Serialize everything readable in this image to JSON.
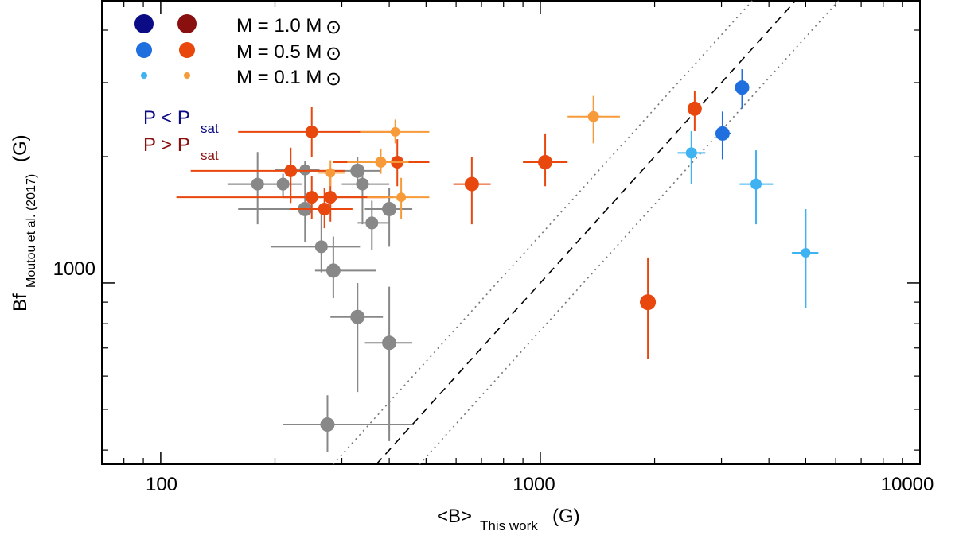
{
  "chart_data": {
    "type": "scatter",
    "xscale": "log",
    "yscale": "log",
    "xlim": [
      70,
      10000
    ],
    "ylim": [
      370,
      4700
    ],
    "xlabel": {
      "main": "<B>",
      "sub": "This work",
      "unit": "(G)"
    },
    "ylabel": {
      "main": "Bf",
      "sub": "Moutou et al. (2017)",
      "unit": "(G)"
    },
    "x_ticks": [
      {
        "value": 100,
        "label": "100"
      },
      {
        "value": 1000,
        "label": "1000"
      },
      {
        "value": 10000,
        "label": "10000"
      }
    ],
    "y_ticks": [
      {
        "value": 1000,
        "label": "1000"
      }
    ],
    "reference_lines": [
      {
        "name": "one-to-one",
        "style": "dashed",
        "factor": 1.0
      },
      {
        "name": "upper-factor",
        "style": "dotted",
        "factor": 1.3
      },
      {
        "name": "lower-factor",
        "style": "dotted",
        "factor": 0.77
      }
    ],
    "legend": {
      "mass_rows": [
        {
          "label": "M = 1.0 M",
          "colors": [
            "#0b0b85",
            "#8a1010"
          ],
          "size": "large"
        },
        {
          "label": "M = 0.5 M",
          "colors": [
            "#1f6fde",
            "#e8470e"
          ],
          "size": "medium"
        },
        {
          "label": "M = 0.1 M",
          "colors": [
            "#3fb3f2",
            "#f79a3a"
          ],
          "size": "small"
        }
      ],
      "sun_symbol": "⊙",
      "period_rows": [
        {
          "label": "P < P",
          "sub": "sat",
          "color": "#0b0b85"
        },
        {
          "label": "P > P",
          "sub": "sat",
          "color": "#8a1010"
        }
      ]
    },
    "points": [
      {
        "x": 180,
        "y": 1720,
        "xerr": [
          150,
          205
        ],
        "yerr": [
          1380,
          2050
        ],
        "color": "#888888",
        "r": 8
      },
      {
        "x": 210,
        "y": 1720,
        "xerr": [
          150,
          235
        ],
        "yerr": [
          1600,
          1820
        ],
        "color": "#888888",
        "r": 8
      },
      {
        "x": 240,
        "y": 1860,
        "xerr": [
          200,
          262
        ],
        "yerr": [
          1780,
          1950
        ],
        "color": "#888888",
        "r": 7
      },
      {
        "x": 240,
        "y": 1500,
        "xerr": [
          160,
          300
        ],
        "yerr": [
          1250,
          1820
        ],
        "color": "#888888",
        "r": 9
      },
      {
        "x": 265,
        "y": 1220,
        "xerr": [
          195,
          335
        ],
        "yerr": [
          1060,
          1460
        ],
        "color": "#888888",
        "r": 8
      },
      {
        "x": 285,
        "y": 1070,
        "xerr": [
          255,
          370
        ],
        "yerr": [
          920,
          1290
        ],
        "color": "#888888",
        "r": 9
      },
      {
        "x": 330,
        "y": 1850,
        "xerr": [
          230,
          380
        ],
        "yerr": [
          1700,
          2000
        ],
        "color": "#888888",
        "r": 9
      },
      {
        "x": 340,
        "y": 1720,
        "xerr": [
          300,
          400
        ],
        "yerr": [
          1380,
          1900
        ],
        "color": "#888888",
        "r": 8
      },
      {
        "x": 360,
        "y": 1390,
        "xerr": [
          330,
          400
        ],
        "yerr": [
          1200,
          1570
        ],
        "color": "#888888",
        "r": 8
      },
      {
        "x": 400,
        "y": 1500,
        "xerr": [
          345,
          460
        ],
        "yerr": [
          1220,
          1680
        ],
        "color": "#888888",
        "r": 9
      },
      {
        "x": 330,
        "y": 830,
        "xerr": [
          280,
          385
        ],
        "yerr": [
          550,
          1000
        ],
        "color": "#888888",
        "r": 9
      },
      {
        "x": 400,
        "y": 720,
        "xerr": [
          345,
          460
        ],
        "yerr": [
          420,
          980
        ],
        "color": "#888888",
        "r": 9
      },
      {
        "x": 275,
        "y": 460,
        "xerr": [
          210,
          460
        ],
        "yerr": [
          395,
          540
        ],
        "color": "#888888",
        "r": 9
      },
      {
        "x": 250,
        "y": 2290,
        "xerr": [
          160,
          420
        ],
        "yerr": [
          2000,
          2630
        ],
        "color": "#e8470e",
        "r": 8
      },
      {
        "x": 220,
        "y": 1850,
        "xerr": [
          120,
          305
        ],
        "yerr": [
          1550,
          2100
        ],
        "color": "#e8470e",
        "r": 8
      },
      {
        "x": 250,
        "y": 1600,
        "xerr": [
          110,
          410
        ],
        "yerr": [
          1420,
          1800
        ],
        "color": "#e8470e",
        "r": 8
      },
      {
        "x": 280,
        "y": 1600,
        "xerr": [
          210,
          390
        ],
        "yerr": [
          1400,
          1800
        ],
        "color": "#e8470e",
        "r": 8
      },
      {
        "x": 270,
        "y": 1500,
        "xerr": [
          220,
          320
        ],
        "yerr": [
          1350,
          1680
        ],
        "color": "#e8470e",
        "r": 8
      },
      {
        "x": 420,
        "y": 1940,
        "xerr": [
          285,
          510
        ],
        "yerr": [
          1700,
          2200
        ],
        "color": "#e8470e",
        "r": 8
      },
      {
        "x": 380,
        "y": 1940,
        "xerr": [
          310,
          450
        ],
        "yerr": [
          1820,
          2080
        ],
        "color": "#f79a3a",
        "r": 7
      },
      {
        "x": 415,
        "y": 2290,
        "xerr": [
          335,
          510
        ],
        "yerr": [
          2150,
          2450
        ],
        "color": "#f79a3a",
        "r": 6
      },
      {
        "x": 430,
        "y": 1600,
        "xerr": [
          350,
          510
        ],
        "yerr": [
          1420,
          1780
        ],
        "color": "#f79a3a",
        "r": 6
      },
      {
        "x": 280,
        "y": 1830,
        "xerr": [
          260,
          305
        ],
        "yerr": [
          1700,
          1960
        ],
        "color": "#f79a3a",
        "r": 6
      },
      {
        "x": 660,
        "y": 1720,
        "xerr": [
          590,
          740
        ],
        "yerr": [
          1380,
          2000
        ],
        "color": "#e8470e",
        "r": 9
      },
      {
        "x": 1030,
        "y": 1940,
        "xerr": [
          900,
          1180
        ],
        "yerr": [
          1700,
          2270
        ],
        "color": "#e8470e",
        "r": 9
      },
      {
        "x": 1380,
        "y": 2490,
        "xerr": [
          1180,
          1620
        ],
        "yerr": [
          2150,
          2790
        ],
        "color": "#f79a3a",
        "r": 7
      },
      {
        "x": 1920,
        "y": 900,
        "xerr": [
          1830,
          2000
        ],
        "yerr": [
          660,
          1150
        ],
        "color": "#e8470e",
        "r": 10
      },
      {
        "x": 2550,
        "y": 2600,
        "xerr": [
          2480,
          2620
        ],
        "yerr": [
          2300,
          2860
        ],
        "color": "#e8470e",
        "r": 9
      },
      {
        "x": 2500,
        "y": 2040,
        "xerr": [
          2300,
          2720
        ],
        "yerr": [
          1720,
          2300
        ],
        "color": "#3fb3f2",
        "r": 7
      },
      {
        "x": 3020,
        "y": 2270,
        "xerr": [
          2880,
          3180
        ],
        "yerr": [
          1970,
          2560
        ],
        "color": "#1f6fde",
        "r": 9
      },
      {
        "x": 3400,
        "y": 2920,
        "xerr": [
          3280,
          3500
        ],
        "yerr": [
          2600,
          3230
        ],
        "color": "#1f6fde",
        "r": 9
      },
      {
        "x": 3700,
        "y": 1720,
        "xerr": [
          3350,
          4100
        ],
        "yerr": [
          1380,
          2070
        ],
        "color": "#3fb3f2",
        "r": 7
      },
      {
        "x": 5000,
        "y": 1180,
        "xerr": [
          4600,
          5400
        ],
        "yerr": [
          870,
          1500
        ],
        "color": "#3fb3f2",
        "r": 6
      }
    ]
  }
}
